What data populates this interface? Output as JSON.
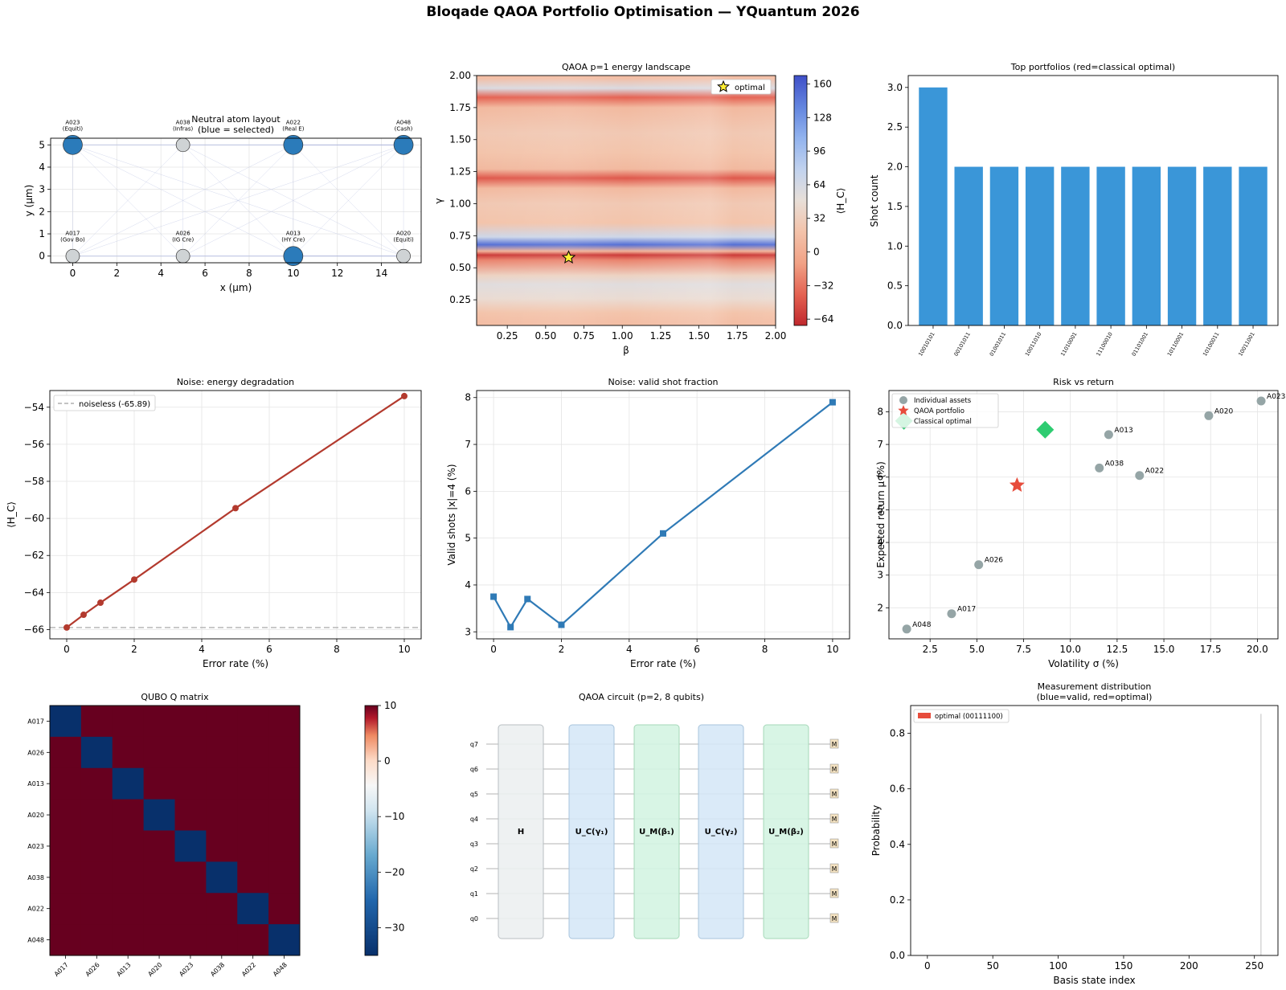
{
  "figure": {
    "title": "Bloqade QAOA Portfolio Optimisation — YQuantum 2026"
  },
  "chart_data": [
    {
      "id": "atoms",
      "type": "scatter",
      "title": "Neutral atom layout\n(blue = selected)",
      "xlabel": "x (μm)",
      "ylabel": "y (μm)",
      "xlim": [
        -1,
        15.8
      ],
      "ylim": [
        -0.3,
        5.3
      ],
      "xticks": [
        0,
        2,
        4,
        6,
        8,
        10,
        12,
        14
      ],
      "yticks": [
        0,
        1,
        2,
        3,
        4,
        5
      ],
      "grid": true,
      "colors": {
        "selected": "#2b7bba",
        "unselected": "#cfd3d5"
      },
      "atoms": [
        {
          "x": 0,
          "y": 5,
          "selected": true,
          "id": "A023",
          "tag": "(Equiti)"
        },
        {
          "x": 5,
          "y": 5,
          "selected": false,
          "id": "A038",
          "tag": "(Infras)"
        },
        {
          "x": 10,
          "y": 5,
          "selected": true,
          "id": "A022",
          "tag": "(Real E)"
        },
        {
          "x": 15,
          "y": 5,
          "selected": true,
          "id": "A048",
          "tag": "(Cash)"
        },
        {
          "x": 0,
          "y": 0,
          "selected": false,
          "id": "A017",
          "tag": "(Gov Bo)"
        },
        {
          "x": 5,
          "y": 0,
          "selected": false,
          "id": "A026",
          "tag": "(IG Cre)"
        },
        {
          "x": 10,
          "y": 0,
          "selected": true,
          "id": "A013",
          "tag": "(HY Cre)"
        },
        {
          "x": 15,
          "y": 0,
          "selected": false,
          "id": "A020",
          "tag": "(Equiti)"
        }
      ]
    },
    {
      "id": "landscape",
      "type": "heatmap",
      "title": "QAOA p=1 energy landscape",
      "xlabel": "β",
      "ylabel": "γ",
      "colorbar_label": "⟨H_C⟩",
      "xlim": [
        0.05,
        2.0
      ],
      "ylim": [
        0.05,
        2.0
      ],
      "xticks": [
        "0.25",
        "0.50",
        "0.75",
        "1.00",
        "1.25",
        "1.50",
        "1.75",
        "2.00"
      ],
      "yticks": [
        "0.25",
        "0.50",
        "0.75",
        "1.00",
        "1.25",
        "1.50",
        "1.75",
        "2.00"
      ],
      "cbar_range": [
        -70,
        168
      ],
      "cbar_ticks": [
        "−64",
        "−32",
        "0",
        "32",
        "64",
        "96",
        "128",
        "160"
      ],
      "bands": [
        {
          "gamma": 0.08,
          "value": 15
        },
        {
          "gamma": 0.15,
          "value": 20
        },
        {
          "gamma": 0.26,
          "value": 45
        },
        {
          "gamma": 0.37,
          "value": 55
        },
        {
          "gamma": 0.44,
          "value": 35
        },
        {
          "gamma": 0.56,
          "value": -25
        },
        {
          "gamma": 0.6,
          "value": -60
        },
        {
          "gamma": 0.63,
          "value": 5
        },
        {
          "gamma": 0.68,
          "value": 150
        },
        {
          "gamma": 0.74,
          "value": 70
        },
        {
          "gamma": 0.85,
          "value": 20
        },
        {
          "gamma": 1.0,
          "value": 25
        },
        {
          "gamma": 1.12,
          "value": 10
        },
        {
          "gamma": 1.2,
          "value": -45
        },
        {
          "gamma": 1.27,
          "value": 10
        },
        {
          "gamma": 1.4,
          "value": 20
        },
        {
          "gamma": 1.55,
          "value": 25
        },
        {
          "gamma": 1.75,
          "value": 10
        },
        {
          "gamma": 1.83,
          "value": -40
        },
        {
          "gamma": 1.9,
          "value": 60
        },
        {
          "gamma": 1.98,
          "value": 15
        }
      ],
      "optimal": {
        "beta": 0.65,
        "gamma": 0.58,
        "label": "optimal"
      }
    },
    {
      "id": "top_portfolios",
      "type": "bar",
      "title": "Top portfolios (red=classical optimal)",
      "ylabel": "Shot count",
      "ylim": [
        0,
        3.15
      ],
      "yticks": [
        "0.0",
        "0.5",
        "1.0",
        "1.5",
        "2.0",
        "2.5",
        "3.0"
      ],
      "color": "#3a96d8",
      "categories": [
        "10010101",
        "00101011",
        "01001011",
        "10011010",
        "11010001",
        "11100010",
        "01101001",
        "10110001",
        "10100011",
        "10011001"
      ],
      "values": [
        3,
        2,
        2,
        2,
        2,
        2,
        2,
        2,
        2,
        2
      ]
    },
    {
      "id": "noise_energy",
      "type": "line",
      "title": "Noise: energy degradation",
      "xlabel": "Error rate (%)",
      "ylabel": "⟨H_C⟩",
      "xlim": [
        -0.5,
        10.5
      ],
      "ylim": [
        -66.5,
        -53.1
      ],
      "xticks": [
        0,
        2,
        4,
        6,
        8,
        10
      ],
      "yticks": [
        "−66",
        "−64",
        "−62",
        "−60",
        "−58",
        "−56",
        "−54"
      ],
      "color": "#b33a2e",
      "x": [
        0,
        0.5,
        1,
        2,
        5,
        10
      ],
      "y": [
        -65.89,
        -65.2,
        -64.55,
        -63.3,
        -59.45,
        -53.4
      ],
      "reference": {
        "value": -65.89,
        "label": "noiseless (-65.89)"
      }
    },
    {
      "id": "noise_valid",
      "type": "line",
      "title": "Noise: valid shot fraction",
      "xlabel": "Error rate (%)",
      "ylabel": "Valid shots |x|=4 (%)",
      "xlim": [
        -0.5,
        10.5
      ],
      "ylim": [
        2.85,
        8.15
      ],
      "xticks": [
        0,
        2,
        4,
        6,
        8,
        10
      ],
      "yticks": [
        3,
        4,
        5,
        6,
        7,
        8
      ],
      "color": "#2f7ab6",
      "x": [
        0,
        0.5,
        1,
        2,
        5,
        10
      ],
      "y": [
        3.75,
        3.1,
        3.7,
        3.15,
        5.1,
        7.9
      ]
    },
    {
      "id": "risk_return",
      "type": "scatter",
      "title": "Risk vs return",
      "xlabel": "Volatility σ (%)",
      "ylabel": "Expected return μ (%)",
      "xlim": [
        0.3,
        21.1
      ],
      "ylim": [
        1.05,
        8.65
      ],
      "xticks": [
        "2.5",
        "5.0",
        "7.5",
        "10.0",
        "12.5",
        "15.0",
        "17.5",
        "20.0"
      ],
      "yticks": [
        2,
        3,
        4,
        5,
        6,
        7,
        8
      ],
      "assets": [
        {
          "name": "A048",
          "x": 1.25,
          "y": 1.35
        },
        {
          "name": "A017",
          "x": 3.65,
          "y": 1.82
        },
        {
          "name": "A026",
          "x": 5.1,
          "y": 3.32
        },
        {
          "name": "A038",
          "x": 11.55,
          "y": 6.28
        },
        {
          "name": "A013",
          "x": 12.05,
          "y": 7.3
        },
        {
          "name": "A022",
          "x": 13.7,
          "y": 6.05
        },
        {
          "name": "A020",
          "x": 17.4,
          "y": 7.88
        },
        {
          "name": "A023",
          "x": 20.2,
          "y": 8.33
        }
      ],
      "qaoa": {
        "x": 7.15,
        "y": 5.75
      },
      "classical": [
        {
          "x": 1.1,
          "y": 7.72
        },
        {
          "x": 8.65,
          "y": 7.45
        }
      ],
      "legend": [
        "Individual assets",
        "QAOA portfolio",
        "Classical optimal"
      ],
      "colors": {
        "assets": "#95a5a6",
        "qaoa": "#e74c3c",
        "classical": "#2ecc71"
      }
    },
    {
      "id": "qubo",
      "type": "heatmap",
      "title": "QUBO Q matrix",
      "labels": [
        "A017",
        "A026",
        "A013",
        "A020",
        "A023",
        "A038",
        "A022",
        "A048"
      ],
      "diagonal": -35,
      "offdiagonal": 10,
      "cbar_range": [
        -35,
        10
      ],
      "cbar_ticks": [
        10,
        0,
        -10,
        -20,
        -30
      ],
      "cbar_tick_labels": [
        "10",
        "0",
        "−10",
        "−20",
        "−30"
      ]
    },
    {
      "id": "circuit",
      "type": "diagram",
      "title": "QAOA circuit (p=2, 8 qubits)",
      "qubits": [
        "q7",
        "q6",
        "q5",
        "q4",
        "q3",
        "q2",
        "q1",
        "q0"
      ],
      "gates": [
        {
          "label": "H",
          "color": "#ecf0f1",
          "border": "#b8bec2"
        },
        {
          "label": "U_C(γ₁)",
          "color": "#d6e8f7",
          "border": "#a8c4dc"
        },
        {
          "label": "U_M(β₁)",
          "color": "#d4f4e2",
          "border": "#a5d8b8"
        },
        {
          "label": "U_C(γ₂)",
          "color": "#d6e8f7",
          "border": "#a8c4dc"
        },
        {
          "label": "U_M(β₂)",
          "color": "#d4f4e2",
          "border": "#a5d8b8"
        }
      ],
      "measure_label": "M"
    },
    {
      "id": "measurement",
      "type": "bar",
      "title": "Measurement distribution\n(blue=valid, red=optimal)",
      "xlabel": "Basis state index",
      "ylabel": "Probability",
      "xlim": [
        -12.8,
        268
      ],
      "ylim": [
        0,
        0.9
      ],
      "xticks": [
        0,
        50,
        100,
        150,
        200,
        250
      ],
      "yticks": [
        "0.0",
        "0.2",
        "0.4",
        "0.6",
        "0.8"
      ],
      "bars": [
        {
          "index": 255,
          "value": 0.87
        }
      ],
      "legend": "optimal (00111100)",
      "colors": {
        "optimal": "#e74c3c",
        "bar": "#d3d3d3"
      }
    }
  ]
}
